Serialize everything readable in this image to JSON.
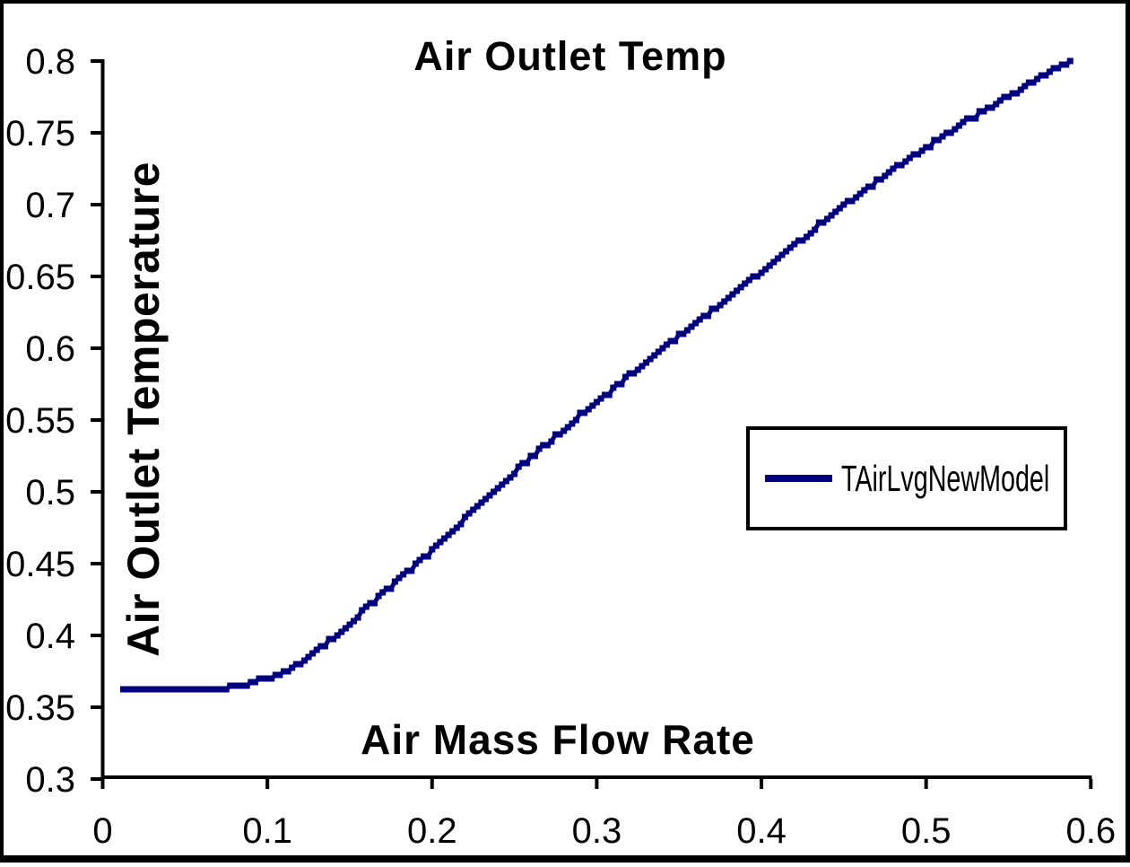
{
  "chart_data": {
    "type": "line",
    "title": "Air Outlet Temp",
    "xlabel": "Air Mass Flow Rate",
    "ylabel": "Air Outlet Temperature",
    "xlim": [
      0,
      0.6
    ],
    "ylim": [
      0.3,
      0.8
    ],
    "x_ticks": [
      0,
      0.1,
      0.2,
      0.3,
      0.4,
      0.5,
      0.6
    ],
    "x_tick_labels": [
      "0",
      "0.1",
      "0.2",
      "0.3",
      "0.4",
      "0.5",
      "0.6"
    ],
    "y_ticks": [
      0.3,
      0.35,
      0.4,
      0.45,
      0.5,
      0.55,
      0.6,
      0.65,
      0.7,
      0.75,
      0.8
    ],
    "y_tick_labels": [
      "0.3",
      "0.35",
      "0.4",
      "0.45",
      "0.5",
      "0.55",
      "0.6",
      "0.65",
      "0.7",
      "0.75",
      "0.8"
    ],
    "grid": "off",
    "legend_position": "middle-right",
    "series_color": "#000080",
    "axis_color": "#000000",
    "background_color": "#ffffff",
    "series": [
      {
        "name": "TAirLvgNewModel",
        "marker": "square",
        "points": [
          [
            0.0125,
            0.3625
          ],
          [
            0.03,
            0.3625
          ],
          [
            0.05,
            0.3625
          ],
          [
            0.065,
            0.3625
          ],
          [
            0.08,
            0.3645
          ],
          [
            0.1,
            0.3705
          ],
          [
            0.115,
            0.377
          ],
          [
            0.14,
            0.398
          ],
          [
            0.165,
            0.4235
          ],
          [
            0.2,
            0.459
          ],
          [
            0.25,
            0.5135
          ],
          [
            0.3,
            0.5625
          ],
          [
            0.345,
            0.604
          ],
          [
            0.4,
            0.6535
          ],
          [
            0.46,
            0.7075
          ],
          [
            0.514,
            0.7505
          ],
          [
            0.545,
            0.7725
          ],
          [
            0.568,
            0.7875
          ],
          [
            0.58,
            0.7955
          ],
          [
            0.5875,
            0.8005
          ]
        ]
      }
    ]
  }
}
